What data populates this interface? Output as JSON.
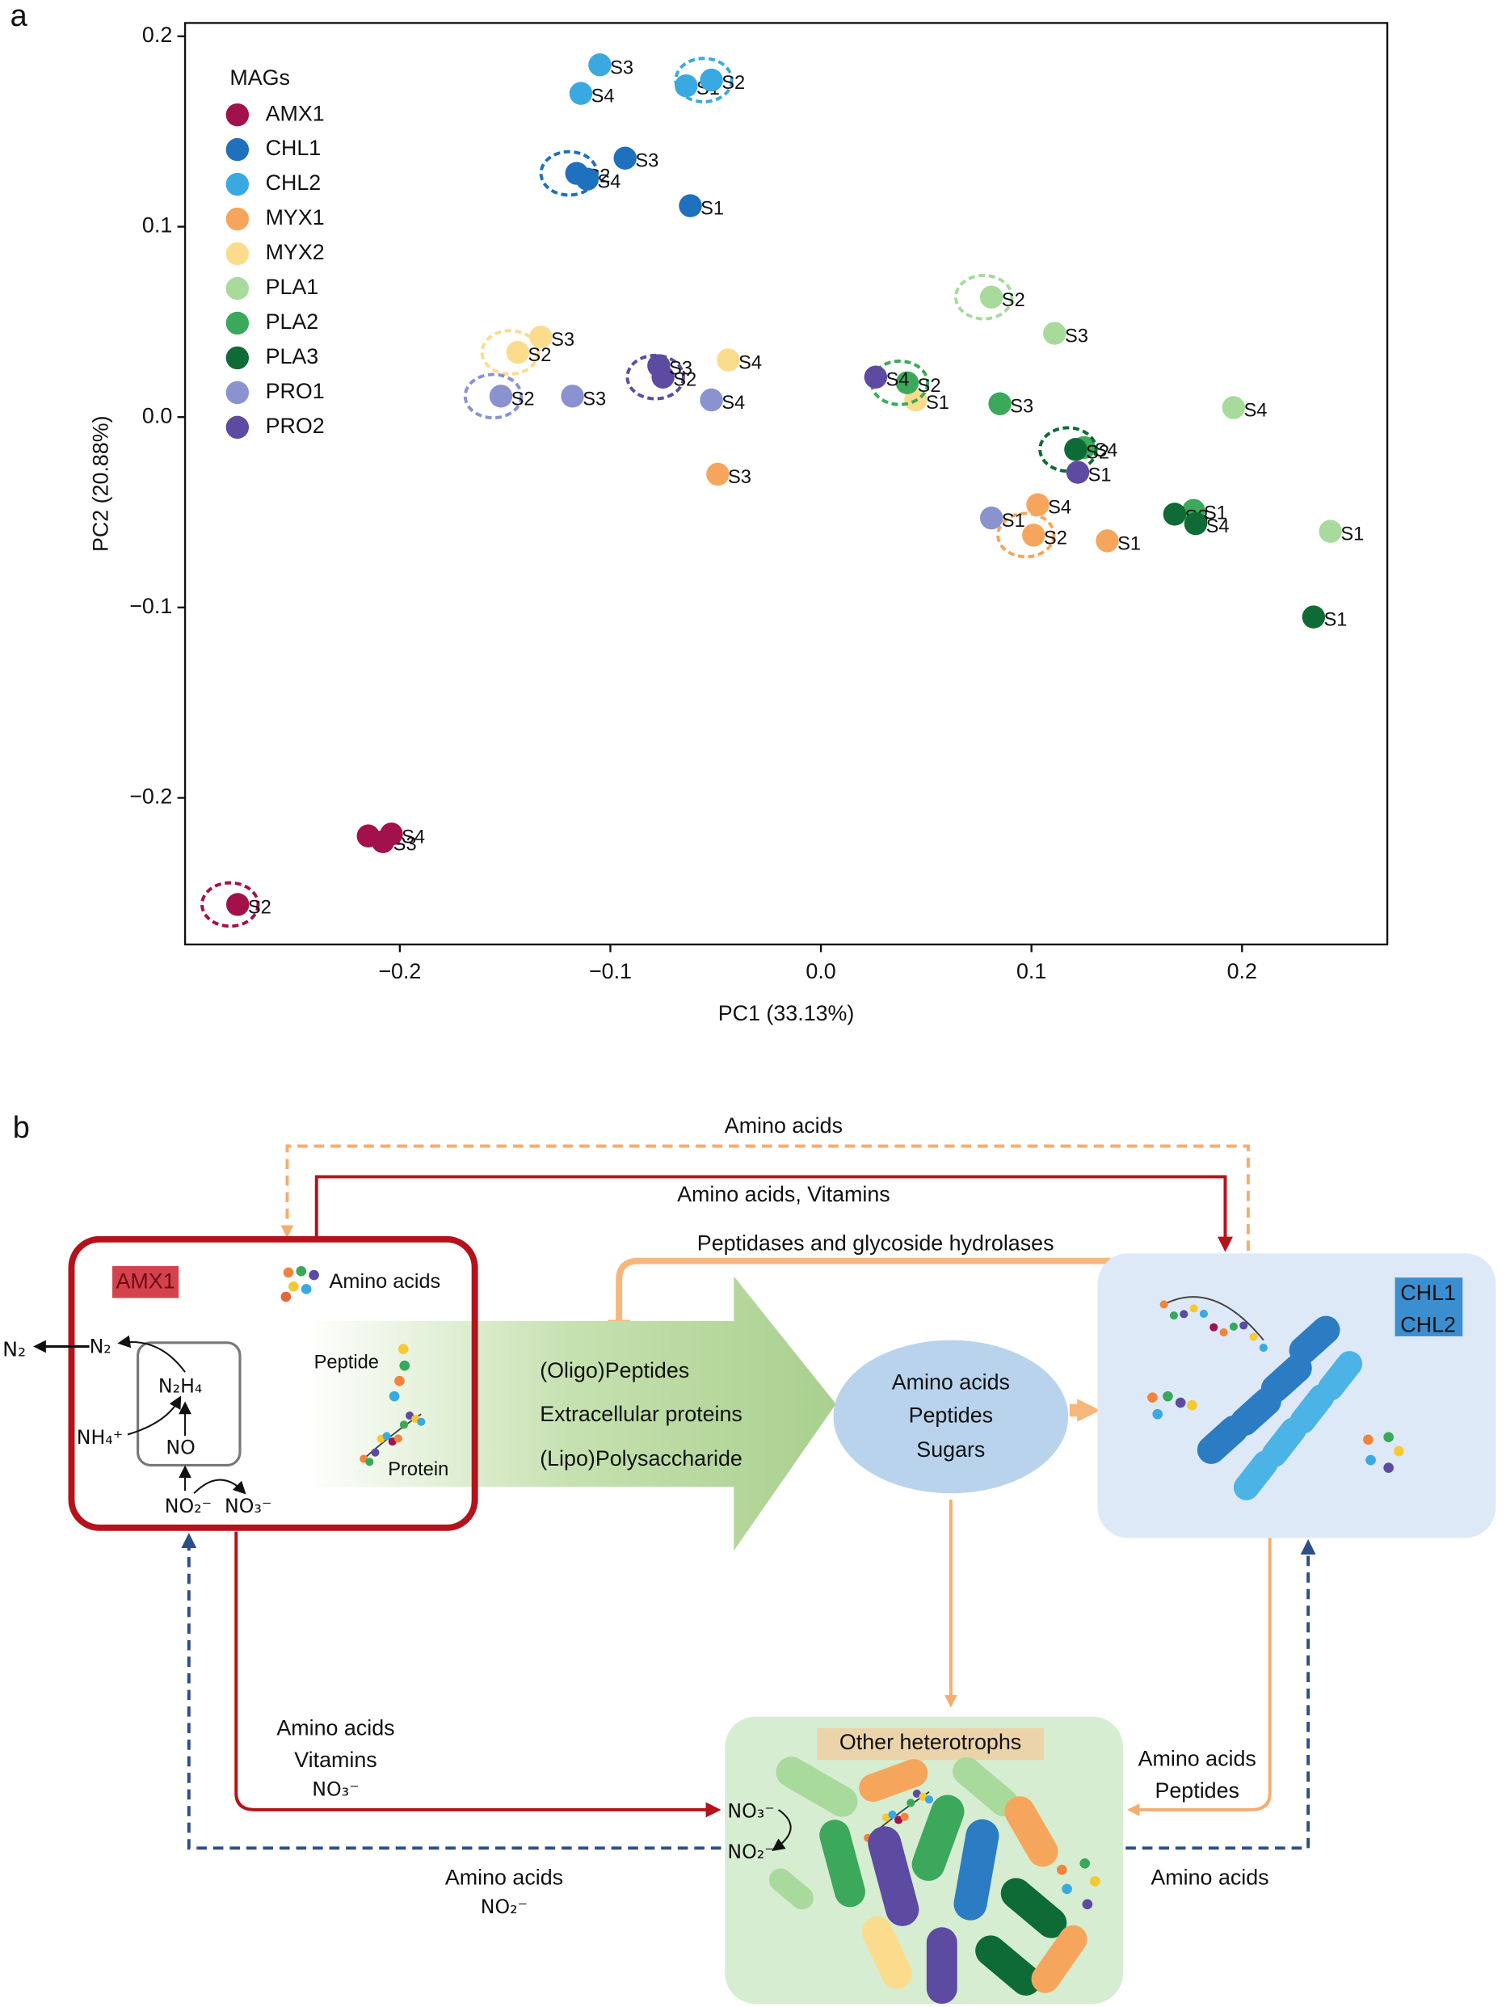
{
  "chart_data": {
    "type": "scatter",
    "panel_label": "a",
    "xlabel": "PC1 (33.13%)",
    "ylabel": "PC2 (20.88%)",
    "xlim": [
      -0.302,
      0.269
    ],
    "ylim": [
      -0.277,
      0.207
    ],
    "xticks": [
      {
        "value": -0.2,
        "label": "−0.2"
      },
      {
        "value": -0.1,
        "label": "−0.1"
      },
      {
        "value": 0,
        "label": "0.0"
      },
      0.1,
      0.2
    ],
    "yticks": [
      {
        "value": -0.2,
        "label": "−0.2"
      },
      {
        "value": -0.1,
        "label": "−0.1"
      },
      {
        "value": 0,
        "label": "0.0"
      },
      0.1,
      0.2
    ],
    "legend_title": "MAGs",
    "legend": "top-left",
    "grid": false,
    "series": [
      {
        "name": "AMX1",
        "color": "#a2114c",
        "labels": [
          "S1",
          "S2",
          "S3",
          "S4"
        ],
        "x": [
          -0.215,
          -0.277,
          -0.208,
          -0.204
        ],
        "values": [
          -0.22,
          -0.256,
          -0.223,
          -0.219
        ],
        "circled": 1
      },
      {
        "name": "CHL1",
        "color": "#1f70bd",
        "labels": [
          "S1",
          "S2",
          "S3",
          "S4"
        ],
        "x": [
          -0.062,
          -0.116,
          -0.093,
          -0.111
        ],
        "values": [
          0.111,
          0.128,
          0.136,
          0.125
        ],
        "circled": 1
      },
      {
        "name": "CHL2",
        "color": "#3aa9e2",
        "labels": [
          "S1",
          "S2",
          "S3",
          "S4"
        ],
        "x": [
          -0.064,
          -0.052,
          -0.105,
          -0.114
        ],
        "values": [
          0.174,
          0.177,
          0.185,
          0.17
        ],
        "circled": 1
      },
      {
        "name": "MYX1",
        "color": "#f6a65c",
        "labels": [
          "S1",
          "S2",
          "S3",
          "S4"
        ],
        "x": [
          0.136,
          0.101,
          -0.049,
          0.103
        ],
        "values": [
          -0.065,
          -0.062,
          -0.03,
          -0.046
        ],
        "circled": 1
      },
      {
        "name": "MYX2",
        "color": "#fbdc8c",
        "labels": [
          "S1",
          "S2",
          "S3",
          "S4"
        ],
        "x": [
          0.045,
          -0.144,
          -0.133,
          -0.044
        ],
        "values": [
          0.009,
          0.034,
          0.042,
          0.03
        ],
        "circled": 1
      },
      {
        "name": "PLA1",
        "color": "#a7da9b",
        "labels": [
          "S1",
          "S2",
          "S3",
          "S4"
        ],
        "x": [
          0.242,
          0.081,
          0.111,
          0.196
        ],
        "values": [
          -0.06,
          0.063,
          0.044,
          0.005
        ],
        "circled": 1
      },
      {
        "name": "PLA2",
        "color": "#3ca85b",
        "labels": [
          "S1",
          "S2",
          "S3",
          "S4"
        ],
        "x": [
          0.177,
          0.041,
          0.085,
          0.125
        ],
        "values": [
          -0.049,
          0.018,
          0.007,
          -0.016
        ],
        "circled": 1
      },
      {
        "name": "PLA3",
        "color": "#0f6b36",
        "labels": [
          "S1",
          "S2",
          "S3",
          "S4"
        ],
        "x": [
          0.234,
          0.121,
          0.168,
          0.178
        ],
        "values": [
          -0.105,
          -0.017,
          -0.051,
          -0.056
        ],
        "circled": 1
      },
      {
        "name": "PRO1",
        "color": "#8b92d0",
        "labels": [
          "S1",
          "S2",
          "S3",
          "S4"
        ],
        "x": [
          0.081,
          -0.152,
          -0.118,
          -0.052
        ],
        "values": [
          -0.053,
          0.011,
          0.011,
          0.009
        ],
        "circled": 1
      },
      {
        "name": "PRO2",
        "color": "#5c4ba1",
        "labels": [
          "S1",
          "S2",
          "S3",
          "S4"
        ],
        "x": [
          0.122,
          -0.075,
          -0.077,
          0.026
        ],
        "values": [
          -0.029,
          0.021,
          0.027,
          0.021
        ],
        "circled": 1
      }
    ]
  },
  "diagram": {
    "panel_label": "b",
    "flows": {
      "top_dashed": "Amino acids",
      "top_solid": "Amino acids, Vitamins",
      "enzymes": "Peptidases and glycoside hydrolases",
      "amx_to_het": [
        "Amino acids",
        "Vitamins",
        "NO₃⁻"
      ],
      "het_to_amx": [
        "Amino acids",
        "NO₂⁻"
      ],
      "chl_to_het": [
        "Amino acids",
        "Peptides"
      ],
      "het_to_chl": "Amino acids"
    },
    "amx1": {
      "label": "AMX1",
      "amino_acids": "Amino acids",
      "peptide": "Peptide",
      "protein": "Protein",
      "n2_out": "N₂",
      "n2": "N₂",
      "n2h4": "N₂H₄",
      "nh4": "NH₄⁺",
      "no": "NO",
      "no2": "NO₂⁻",
      "no3": "NO₃⁻"
    },
    "exported": [
      "(Oligo)Peptides",
      "Extracellular proteins",
      "(Lipo)Polysaccharide"
    ],
    "pool": [
      "Amino acids",
      "Peptides",
      "Sugars"
    ],
    "chl": [
      "CHL1",
      "CHL2"
    ],
    "heterotrophs": {
      "label": "Other heterotrophs",
      "no3": "NO₃⁻",
      "no2": "NO₂⁻"
    }
  }
}
